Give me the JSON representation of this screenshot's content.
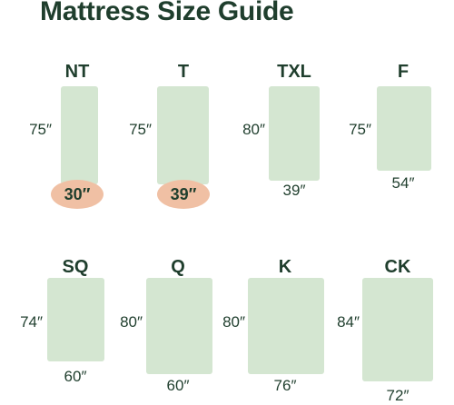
{
  "title": "Mattress Size Guide",
  "mattresses": [
    {
      "name": "NT",
      "length": "75″",
      "width": "30″",
      "width_highlighted": true
    },
    {
      "name": "T",
      "length": "75″",
      "width": "39″",
      "width_highlighted": true
    },
    {
      "name": "TXL",
      "length": "80″",
      "width": "39″",
      "width_highlighted": false
    },
    {
      "name": "F",
      "length": "75″",
      "width": "54″",
      "width_highlighted": false
    },
    {
      "name": "SQ",
      "length": "74″",
      "width": "60″",
      "width_highlighted": false
    },
    {
      "name": "Q",
      "length": "80″",
      "width": "60″",
      "width_highlighted": false
    },
    {
      "name": "K",
      "length": "80″",
      "width": "76″",
      "width_highlighted": false
    },
    {
      "name": "CK",
      "length": "84″",
      "width": "72″",
      "width_highlighted": false
    }
  ],
  "colors": {
    "mattress_fill": "#d4e6d1",
    "highlight_fill": "#f0c0a4",
    "text": "#1f3e2d"
  }
}
